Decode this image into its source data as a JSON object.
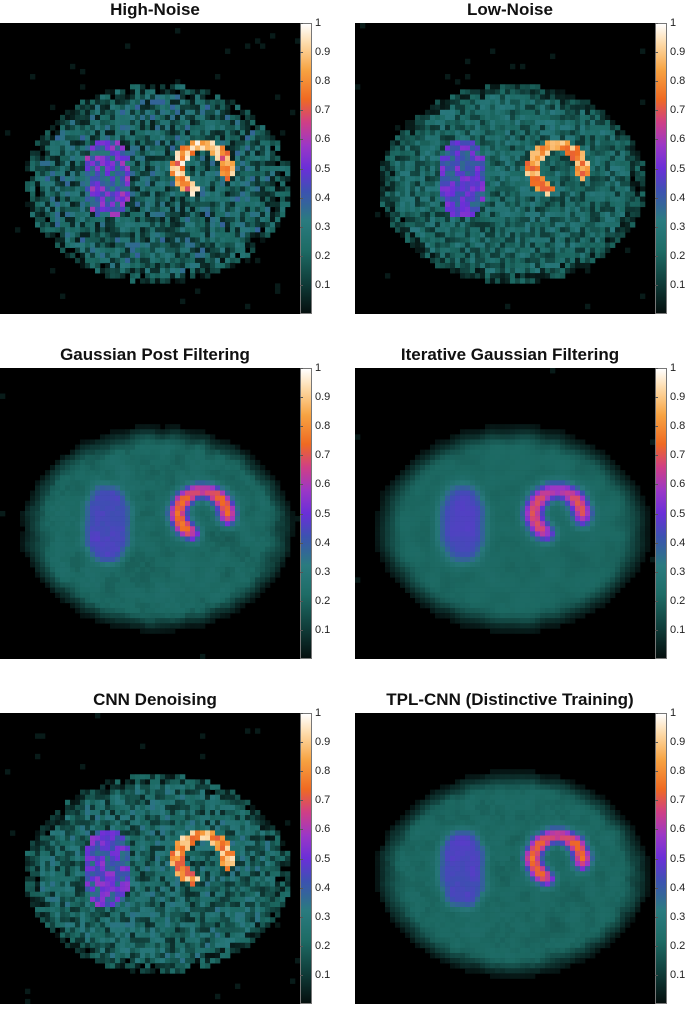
{
  "panels": [
    {
      "title": "High-Noise",
      "noise": 0.9,
      "blur": 0.0
    },
    {
      "title": "Low-Noise",
      "noise": 0.6,
      "blur": 0.0
    },
    {
      "title": "Gaussian Post Filtering",
      "noise": 0.35,
      "blur": 1.0
    },
    {
      "title": "Iterative Gaussian Filtering",
      "noise": 0.25,
      "blur": 1.3
    },
    {
      "title": "CNN Denoising",
      "noise": 0.7,
      "blur": 0.2
    },
    {
      "title": "TPL-CNN (Distinctive Training)",
      "noise": 0.3,
      "blur": 0.9
    }
  ],
  "colorbar": {
    "ticks": [
      "1",
      "0.9",
      "0.8",
      "0.7",
      "0.6",
      "0.5",
      "0.4",
      "0.3",
      "0.2",
      "0.1"
    ],
    "range": [
      0,
      1
    ]
  }
}
